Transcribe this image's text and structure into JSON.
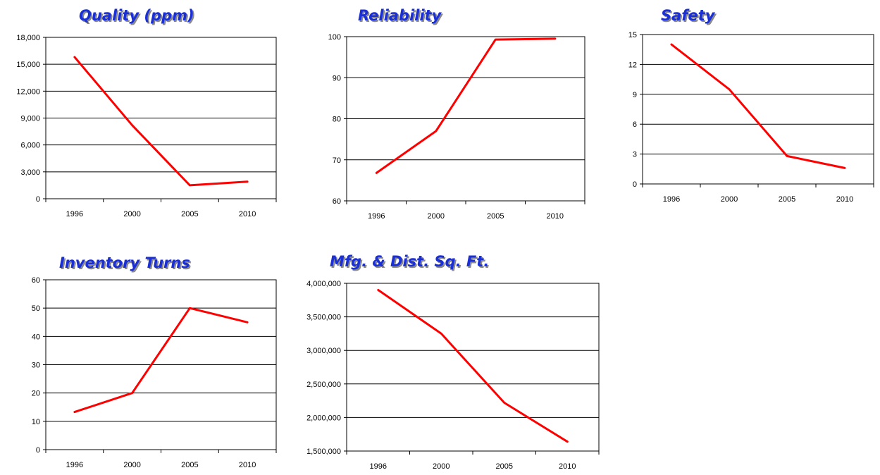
{
  "chart_data": [
    {
      "type": "line",
      "title": "Quality (ppm)",
      "categories": [
        "1996",
        "2000",
        "2005",
        "2010"
      ],
      "series": [
        {
          "values": [
            15800,
            8200,
            1500,
            1900
          ]
        }
      ],
      "ylim": [
        0,
        18000
      ],
      "yticks": [
        "0",
        "3,000",
        "6,000",
        "9,000",
        "12,000",
        "15,000",
        "18,000"
      ],
      "grid": true,
      "color": "#ff0000"
    },
    {
      "type": "line",
      "title": "Reliability",
      "categories": [
        "1996",
        "2000",
        "2005",
        "2010"
      ],
      "series": [
        {
          "values": [
            66.8,
            77,
            99.3,
            99.5
          ]
        }
      ],
      "ylim": [
        60,
        100
      ],
      "yticks": [
        "60",
        "70",
        "80",
        "90",
        "100"
      ],
      "grid": true,
      "color": "#ff0000"
    },
    {
      "type": "line",
      "title": "Safety",
      "categories": [
        "1996",
        "2000",
        "2005",
        "2010"
      ],
      "series": [
        {
          "values": [
            14,
            9.5,
            2.8,
            1.6
          ]
        }
      ],
      "ylim": [
        0,
        15
      ],
      "yticks": [
        "0",
        "3",
        "6",
        "9",
        "12",
        "15"
      ],
      "grid": true,
      "color": "#ff0000"
    },
    {
      "type": "line",
      "title": "Inventory Turns",
      "categories": [
        "1996",
        "2000",
        "2005",
        "2010"
      ],
      "series": [
        {
          "values": [
            13.3,
            20,
            50,
            45
          ]
        }
      ],
      "ylim": [
        0,
        60
      ],
      "yticks": [
        "0",
        "10",
        "20",
        "30",
        "40",
        "50",
        "60"
      ],
      "grid": true,
      "color": "#ff0000"
    },
    {
      "type": "line",
      "title": "Mfg. & Dist. Sq. Ft.",
      "categories": [
        "1996",
        "2000",
        "2005",
        "2010"
      ],
      "series": [
        {
          "values": [
            3900000,
            3250000,
            2220000,
            1640000
          ]
        }
      ],
      "ylim": [
        1500000,
        4000000
      ],
      "yticks": [
        "1,500,000",
        "2,000,000",
        "2,500,000",
        "3,000,000",
        "3,500,000",
        "4,000,000"
      ],
      "grid": true,
      "color": "#ff0000"
    }
  ]
}
